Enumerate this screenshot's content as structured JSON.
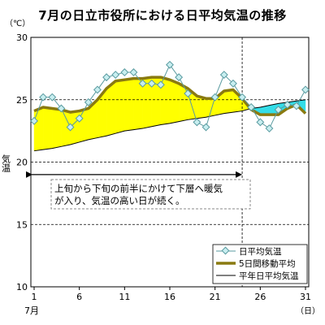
{
  "chart_data": {
    "type": "line",
    "title": "7月の日立市役所における日平均気温の推移",
    "unit_label": "（℃）",
    "ylabel": "気温",
    "xunit": "（日）",
    "month_label": "7月",
    "ylim": [
      10,
      30
    ],
    "yticks": [
      10,
      15,
      20,
      25,
      30
    ],
    "xlim": [
      1,
      31
    ],
    "xticks": [
      1,
      6,
      11,
      16,
      21,
      26,
      31
    ],
    "x": [
      1,
      2,
      3,
      4,
      5,
      6,
      7,
      8,
      9,
      10,
      11,
      12,
      13,
      14,
      15,
      16,
      17,
      18,
      19,
      20,
      21,
      22,
      23,
      24,
      25,
      26,
      27,
      28,
      29,
      30,
      31
    ],
    "series": [
      {
        "name": "日平均気温",
        "color": "#5a9ba0",
        "marker_fill": "#c8eef0",
        "values": [
          23.3,
          25.2,
          25.2,
          24.3,
          22.8,
          23.5,
          24.8,
          25.8,
          26.8,
          27.0,
          27.2,
          27.2,
          26.3,
          26.3,
          26.2,
          27.8,
          26.8,
          25.5,
          23.2,
          22.8,
          25.2,
          27.0,
          26.3,
          25.2,
          24.4,
          23.2,
          22.7,
          24.2,
          24.6,
          24.5,
          25.8
        ]
      },
      {
        "name": "5日間移動平均",
        "color": "#8a7a10",
        "values": [
          24.1,
          24.4,
          24.3,
          24.2,
          24.0,
          24.1,
          24.3,
          25.0,
          25.9,
          26.5,
          26.6,
          26.7,
          26.7,
          26.8,
          26.8,
          26.6,
          26.3,
          25.9,
          25.3,
          25.1,
          25.1,
          25.7,
          25.8,
          25.1,
          24.2,
          23.8,
          23.8,
          23.8,
          24.3,
          24.6,
          23.9
        ]
      },
      {
        "name": "平年日平均気温",
        "color": "#000000",
        "values": [
          20.9,
          21.0,
          21.1,
          21.25,
          21.4,
          21.6,
          21.8,
          21.95,
          22.1,
          22.3,
          22.5,
          22.6,
          22.7,
          22.85,
          23.0,
          23.1,
          23.25,
          23.4,
          23.5,
          23.6,
          23.75,
          23.9,
          24.0,
          24.1,
          24.3,
          24.4,
          24.55,
          24.7,
          24.8,
          24.9,
          25.0
        ]
      }
    ],
    "fill_colors": {
      "above_normal": "#ffff00",
      "below_normal": "#33dde8"
    },
    "grid": true,
    "legend_position": "bottom-right",
    "annotation": {
      "lines": [
        "上旬から下旬の前半にかけて下層へ暖気",
        "が入り、気温の高い日が続く。"
      ],
      "arrow_from": 1,
      "arrow_to": 24
    }
  }
}
